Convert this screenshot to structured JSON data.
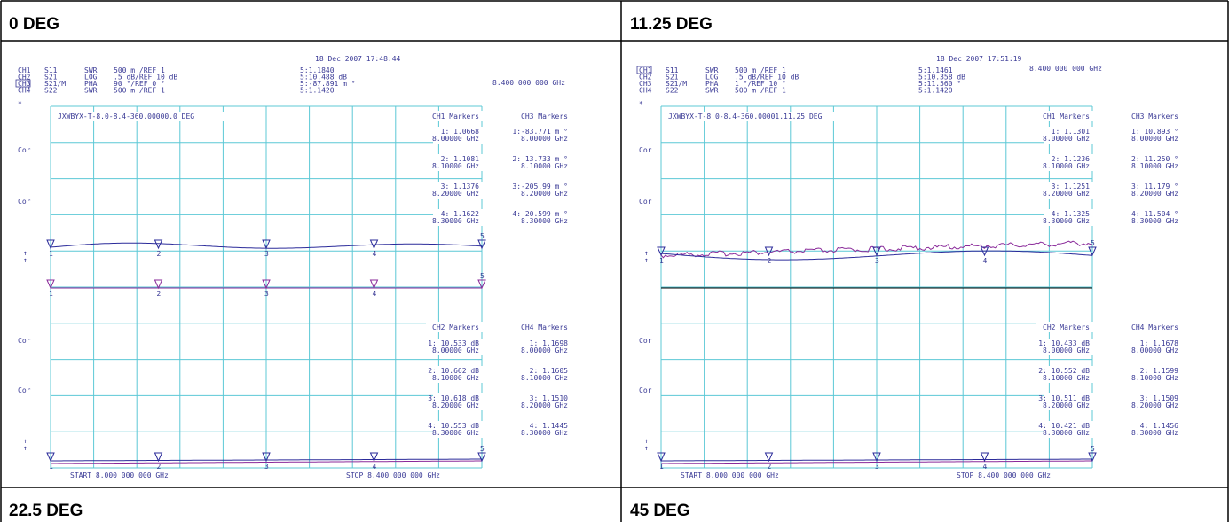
{
  "panels": [
    {
      "title": "0 DEG",
      "date": "18 Dec 2007  17:48:44",
      "channels": [
        [
          "CH1",
          "S11",
          "SWR",
          "500 m /REF 1"
        ],
        [
          "CH2",
          "S21",
          "LOG",
          ".5 dB/REF 10 dB"
        ],
        [
          "CH3",
          "S21/M",
          "PHA",
          "90 °/REF 0 °"
        ],
        [
          "CH4",
          "S22",
          "SWR",
          "500 m /REF 1"
        ]
      ],
      "active": 2,
      "readouts": [
        "5:1.1840",
        "5:10.488 dB",
        "5:-87.891 m °",
        "5:1.1420"
      ],
      "freq": "8.400 000 000 GHz",
      "plot_title": "JXWBYX-T-8.0-8.4-360.00000.0 DEG",
      "upper_headers": [
        "CH1 Markers",
        "CH3 Markers"
      ],
      "upper_markers": [
        [
          "1: 1.0668",
          "8.00000 GHz",
          "1:-83.771 m °",
          "8.00000 GHz"
        ],
        [
          "2: 1.1081",
          "8.10000 GHz",
          "2: 13.733 m °",
          "8.10000 GHz"
        ],
        [
          "3: 1.1376",
          "8.20000 GHz",
          "3:-205.99 m °",
          "8.20000 GHz"
        ],
        [
          "4: 1.1622",
          "8.30000 GHz",
          "4: 20.599 m °",
          "8.30000 GHz"
        ]
      ],
      "lower_headers": [
        "CH2 Markers",
        "CH4 Markers"
      ],
      "lower_markers": [
        [
          "1: 10.533 dB",
          "8.00000 GHz",
          "1: 1.1698",
          "8.00000 GHz"
        ],
        [
          "2: 10.662 dB",
          "8.10000 GHz",
          "2: 1.1605",
          "8.10000 GHz"
        ],
        [
          "3: 10.618 dB",
          "8.20000 GHz",
          "3: 1.1510",
          "8.20000 GHz"
        ],
        [
          "4: 10.553 dB",
          "8.30000 GHz",
          "4: 1.1445",
          "8.30000 GHz"
        ]
      ],
      "start": "START 8.000 000 000 GHz",
      "stop": "STOP 8.400 000 000 GHz"
    },
    {
      "title": "11.25 DEG",
      "date": "18 Dec 2007  17:51:19",
      "channels": [
        [
          "CH1",
          "S11",
          "SWR",
          "500 m /REF 1"
        ],
        [
          "CH2",
          "S21",
          "LOG",
          ".5 dB/REF 10 dB"
        ],
        [
          "CH3",
          "S21/M",
          "PHA",
          "1 °/REF 10 °"
        ],
        [
          "CH4",
          "S22",
          "SWR",
          "500 m /REF 1"
        ]
      ],
      "active": 0,
      "readouts": [
        "5:1.1461",
        "5:10.358 dB",
        "5:11.560 °",
        "5:1.1420"
      ],
      "freq": "8.400 000 000 GHz",
      "plot_title": "JXWBYX-T-8.0-8.4-360.00001.11.25 DEG",
      "upper_headers": [
        "CH1 Markers",
        "CH3 Markers"
      ],
      "upper_markers": [
        [
          "1: 1.1301",
          "8.00000 GHz",
          "1: 10.893 °",
          "8.00000 GHz"
        ],
        [
          "2: 1.1236",
          "8.10000 GHz",
          "2: 11.250 °",
          "8.10000 GHz"
        ],
        [
          "3: 1.1251",
          "8.20000 GHz",
          "3: 11.179 °",
          "8.20000 GHz"
        ],
        [
          "4: 1.1325",
          "8.30000 GHz",
          "4: 11.504 °",
          "8.30000 GHz"
        ]
      ],
      "lower_headers": [
        "CH2 Markers",
        "CH4 Markers"
      ],
      "lower_markers": [
        [
          "1: 10.433 dB",
          "8.00000 GHz",
          "1: 1.1678",
          "8.00000 GHz"
        ],
        [
          "2: 10.552 dB",
          "8.10000 GHz",
          "2: 1.1599",
          "8.10000 GHz"
        ],
        [
          "3: 10.511 dB",
          "8.20000 GHz",
          "3: 1.1509",
          "8.20000 GHz"
        ],
        [
          "4: 10.421 dB",
          "8.30000 GHz",
          "4: 1.1456",
          "8.30000 GHz"
        ]
      ],
      "start": "START 8.000 000 000 GHz",
      "stop": "STOP 8.400 000 000 GHz"
    }
  ],
  "cor_label": "Cor",
  "marker_ids": [
    "1",
    "2",
    "3",
    "4",
    "5"
  ],
  "bottom_titles": [
    "22.5 DEG",
    "45 DEG"
  ]
}
